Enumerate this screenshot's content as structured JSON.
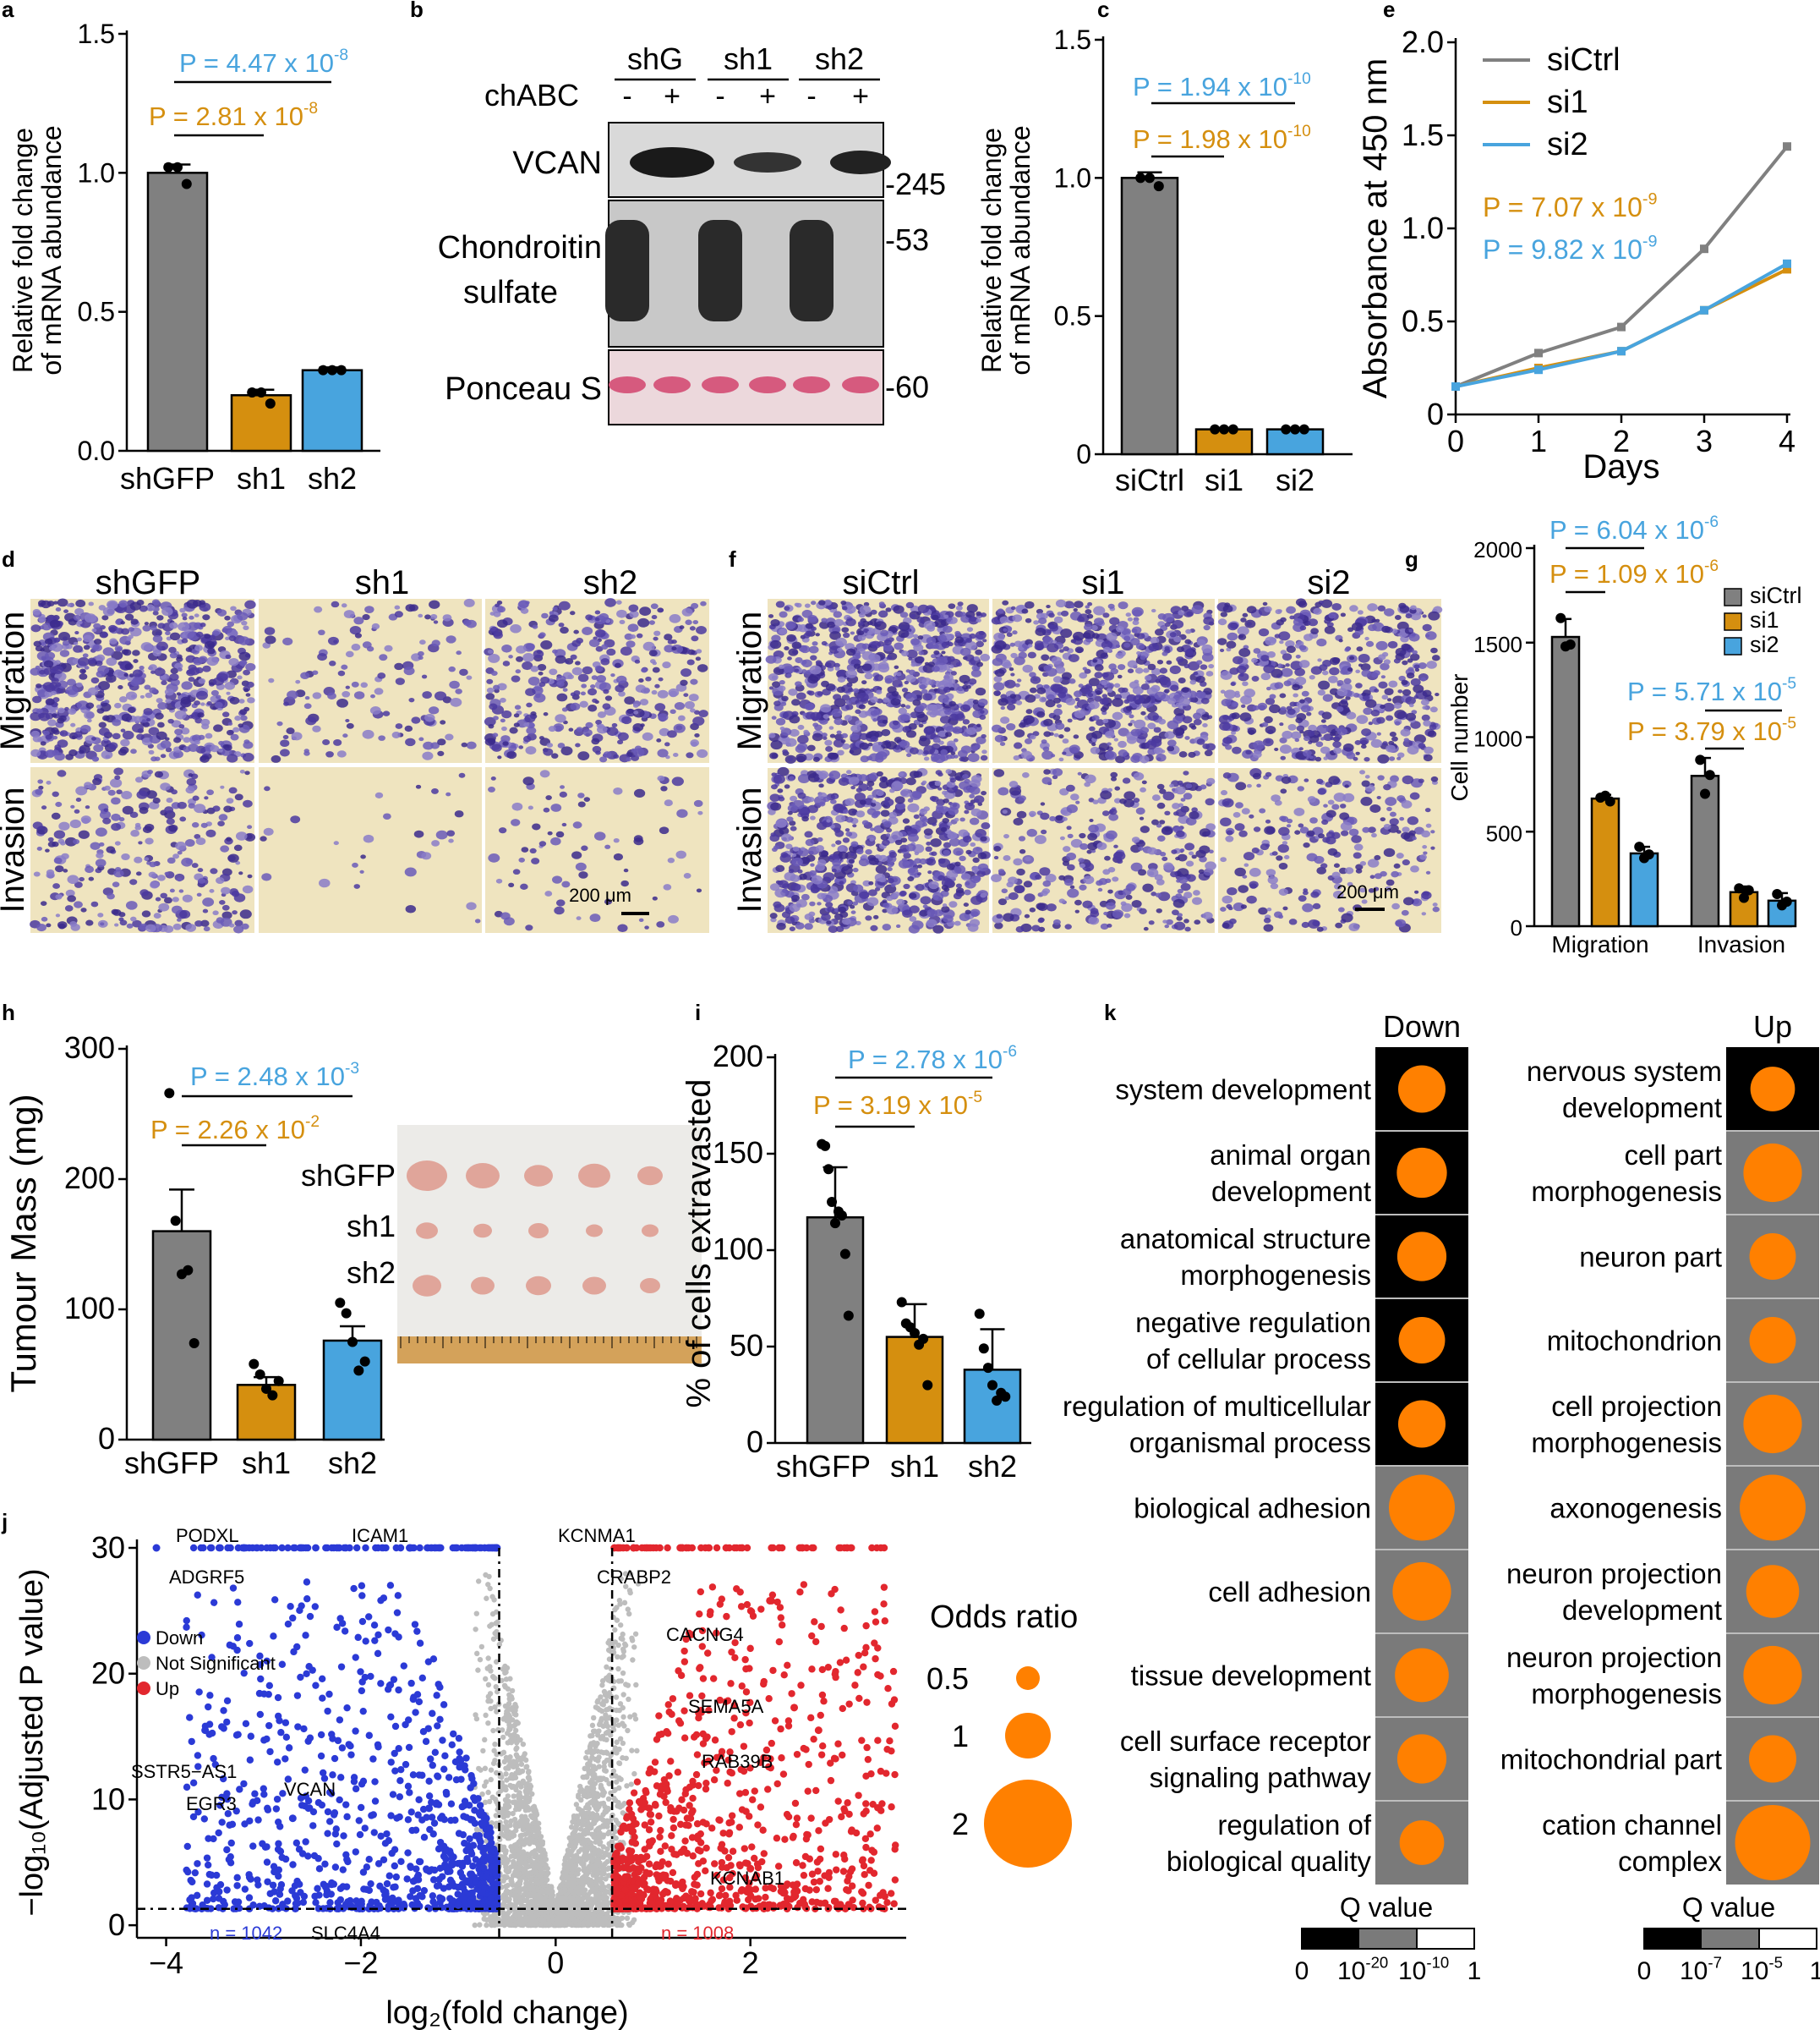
{
  "colors": {
    "grey": "#808080",
    "orange": "#d58f0f",
    "blue": "#48a4de",
    "down": "#2b3ad6",
    "up": "#e2272e",
    "ns": "#bdbdbd",
    "dot": "#ff8000",
    "black": "#000000",
    "mid": "#7a7a7a"
  },
  "panels": {
    "a": {
      "letter": "a",
      "ylabel1": "Relative fold change",
      "ylabel2": "of mRNA abundance",
      "yticks": [
        "0.0",
        "0.5",
        "1.0",
        "1.5"
      ],
      "p_blue": "P = 4.47 x 10",
      "p_blue_exp": "-8",
      "p_orange": "P = 2.81 x 10",
      "p_orange_exp": "-8"
    },
    "b": {
      "letter": "b",
      "groups": [
        "shG",
        "sh1",
        "sh2"
      ],
      "chabc": "chABC",
      "signs": [
        "-",
        "+",
        "-",
        "+",
        "-",
        "+"
      ],
      "rows": [
        "VCAN",
        "Chondroitin",
        "sulfate",
        "Ponceau S"
      ],
      "mw": [
        "-245",
        "-53",
        "-60"
      ]
    },
    "c": {
      "letter": "c",
      "ylabel1": "Relative fold change",
      "ylabel2": "of mRNA abundance",
      "yticks": [
        "0",
        "0.5",
        "1.0",
        "1.5"
      ],
      "p_blue": "P = 1.94 x 10",
      "p_blue_exp": "-10",
      "p_orange": "P = 1.98 x 10",
      "p_orange_exp": "-10"
    },
    "e": {
      "letter": "e",
      "ylabel": "Absorbance at 450 nm",
      "xlabel": "Days",
      "yticks": [
        "0",
        "0.5",
        "1.0",
        "1.5",
        "2.0"
      ],
      "xticks": [
        "0",
        "1",
        "2",
        "3",
        "4"
      ],
      "legend": [
        "siCtrl",
        "si1",
        "si2"
      ],
      "p_orange": "P = 7.07 x 10",
      "p_orange_exp": "-9",
      "p_blue": "P = 9.82 x 10",
      "p_blue_exp": "-9"
    },
    "d": {
      "letter": "d",
      "cols": [
        "shGFP",
        "sh1",
        "sh2"
      ],
      "rows": [
        "Migration",
        "Invasion"
      ],
      "scale": "200 μm"
    },
    "f": {
      "letter": "f",
      "cols": [
        "siCtrl",
        "si1",
        "si2"
      ],
      "rows": [
        "Migration",
        "Invasion"
      ],
      "scale": "200 μm"
    },
    "g": {
      "letter": "g",
      "ylabel": "Cell number",
      "yticks": [
        "0",
        "500",
        "1000",
        "1500",
        "2000"
      ],
      "groups": [
        "Migration",
        "Invasion"
      ],
      "legend": [
        "siCtrl",
        "si1",
        "si2"
      ],
      "p1_blue": "P = 6.04 x 10",
      "p1_blue_exp": "-6",
      "p1_orange": "P = 1.09 x 10",
      "p1_orange_exp": "-6",
      "p2_blue": "P = 5.71 x 10",
      "p2_blue_exp": "-5",
      "p2_orange": "P = 3.79 x 10",
      "p2_orange_exp": "-5"
    },
    "h": {
      "letter": "h",
      "ylabel": "Tumour Mass (mg)",
      "yticks": [
        "0",
        "100",
        "200",
        "300"
      ],
      "p_blue": "P = 2.48 x 10",
      "p_blue_exp": "-3",
      "p_orange": "P = 2.26 x 10",
      "p_orange_exp": "-2",
      "photo_labels": [
        "shGFP",
        "sh1",
        "sh2"
      ]
    },
    "i": {
      "letter": "i",
      "ylabel": "% of cells extravasted",
      "yticks": [
        "0",
        "50",
        "100",
        "150",
        "200"
      ],
      "p_blue": "P = 2.78 x 10",
      "p_blue_exp": "-6",
      "p_orange": "P = 3.19 x 10",
      "p_orange_exp": "-5"
    },
    "j": {
      "letter": "j",
      "ylabel": "−log₁₀(Adjusted P value)",
      "xlabel": "log₂(fold change)",
      "xticks": [
        "−4",
        "−2",
        "0",
        "2"
      ],
      "yticks": [
        "0",
        "10",
        "20",
        "30"
      ],
      "legend": [
        "Down",
        "Not Significant",
        "Up"
      ],
      "n_down": "n = 1042",
      "n_up": "n = 1008",
      "genes": [
        "PODXL",
        "ICAM1",
        "ADGRF5",
        "KCNMA1",
        "CRABP2",
        "CACNG4",
        "SEMA5A",
        "RAB39B",
        "SSTR5−AS1",
        "VCAN",
        "EGR3",
        "KCNAB1",
        "SLC4A4"
      ],
      "odds_title": "Odds ratio",
      "odds_labels": [
        "0.5",
        "1",
        "2"
      ]
    },
    "k": {
      "letter": "k",
      "down_title": "Down",
      "up_title": "Up",
      "down_terms": [
        [
          "system development"
        ],
        [
          "animal organ",
          "development"
        ],
        [
          "anatomical structure",
          "morphogenesis"
        ],
        [
          "negative regulation",
          "of cellular process"
        ],
        [
          "regulation of multicellular",
          "organismal process"
        ],
        [
          "biological adhesion"
        ],
        [
          "cell adhesion"
        ],
        [
          "tissue development"
        ],
        [
          "cell surface receptor",
          "signaling pathway"
        ],
        [
          "regulation of",
          "biological quality"
        ]
      ],
      "up_terms": [
        [
          "nervous system",
          "development"
        ],
        [
          "cell part",
          "morphogenesis"
        ],
        [
          "neuron part"
        ],
        [
          "mitochondrion"
        ],
        [
          "cell projection",
          "morphogenesis"
        ],
        [
          "axonogenesis"
        ],
        [
          "neuron projection",
          "development"
        ],
        [
          "neuron projection",
          "morphogenesis"
        ],
        [
          "mitochondrial part"
        ],
        [
          "cation channel",
          "complex"
        ]
      ],
      "qtitle": "Q value",
      "q_down_ticks": [
        "0",
        "10",
        "1"
      ],
      "q_down_exps": [
        "-20",
        "-10"
      ],
      "q_up_ticks": [
        "0",
        "10",
        "1"
      ],
      "q_up_exps": [
        "-7",
        "-5"
      ]
    }
  },
  "chart_data": [
    {
      "panel": "a",
      "type": "bar",
      "categories": [
        "shGFP",
        "sh1",
        "sh2"
      ],
      "values": [
        1.0,
        0.2,
        0.29
      ],
      "errors": [
        0.03,
        0.02,
        0.01
      ],
      "points": [
        [
          1.02,
          1.02,
          0.96
        ],
        [
          0.21,
          0.21,
          0.17
        ],
        [
          0.29,
          0.29,
          0.29
        ]
      ],
      "ylim": [
        0,
        1.5
      ],
      "colors": [
        "#808080",
        "#d58f0f",
        "#48a4de"
      ]
    },
    {
      "panel": "c",
      "type": "bar",
      "categories": [
        "siCtrl",
        "si1",
        "si2"
      ],
      "values": [
        1.0,
        0.09,
        0.09
      ],
      "errors": [
        0.02,
        0.005,
        0.005
      ],
      "points": [
        [
          1.0,
          1.0,
          0.97
        ],
        [
          0.09,
          0.09,
          0.09
        ],
        [
          0.09,
          0.09,
          0.09
        ]
      ],
      "ylim": [
        0,
        1.5
      ],
      "colors": [
        "#808080",
        "#d58f0f",
        "#48a4de"
      ]
    },
    {
      "panel": "e",
      "type": "line",
      "x": [
        0,
        1,
        2,
        3,
        4
      ],
      "series": [
        {
          "name": "siCtrl",
          "values": [
            0.15,
            0.33,
            0.47,
            0.89,
            1.44
          ]
        },
        {
          "name": "si1",
          "values": [
            0.15,
            0.25,
            0.34,
            0.56,
            0.78
          ]
        },
        {
          "name": "si2",
          "values": [
            0.15,
            0.24,
            0.34,
            0.56,
            0.81
          ]
        }
      ],
      "xlim": [
        0,
        4
      ],
      "ylim": [
        0,
        2.0
      ],
      "ylabel": "Absorbance at 450 nm",
      "xlabel": "Days"
    },
    {
      "panel": "g",
      "type": "bar",
      "categories": [
        "Migration",
        "Invasion"
      ],
      "series": [
        {
          "name": "siCtrl",
          "values": [
            1530,
            795
          ],
          "errors": [
            95,
            95
          ],
          "points": [
            [
              1630,
              1480,
              1490
            ],
            [
              880,
              700,
              800
            ]
          ]
        },
        {
          "name": "si1",
          "values": [
            675,
            180
          ],
          "errors": [
            20,
            30
          ],
          "points": [
            [
              680,
              690,
              660
            ],
            [
              200,
              150,
              190
            ]
          ]
        },
        {
          "name": "si2",
          "values": [
            385,
            135
          ],
          "errors": [
            35,
            40
          ],
          "points": [
            [
              420,
              360,
              380
            ],
            [
              170,
              110,
              130
            ]
          ]
        }
      ],
      "ylim": [
        0,
        2000
      ],
      "ylabel": "Cell number"
    },
    {
      "panel": "h",
      "type": "bar",
      "categories": [
        "shGFP",
        "sh1",
        "sh2"
      ],
      "values": [
        160,
        42,
        76
      ],
      "errors": [
        32,
        6,
        11
      ],
      "points": [
        [
          266,
          168,
          127,
          130,
          74
        ],
        [
          58,
          50,
          39,
          34,
          45
        ],
        [
          105,
          97,
          75,
          53,
          60
        ]
      ],
      "ylim": [
        0,
        300
      ],
      "ylabel": "Tumour Mass (mg)"
    },
    {
      "panel": "i",
      "type": "bar",
      "categories": [
        "shGFP",
        "sh1",
        "sh2"
      ],
      "values": [
        117,
        55,
        38
      ],
      "errors": [
        26,
        17,
        21
      ],
      "points": [
        [
          155,
          154,
          142,
          125,
          114,
          120,
          118,
          98,
          66
        ],
        [
          73,
          62,
          60,
          57,
          51,
          54,
          30
        ],
        [
          67,
          49,
          39,
          30,
          22,
          26,
          24
        ]
      ],
      "ylim": [
        0,
        200
      ],
      "ylabel": "% of cells extravasted"
    },
    {
      "panel": "j",
      "type": "scatter",
      "xlim": [
        -4.3,
        3.6
      ],
      "ylim": [
        0,
        30
      ],
      "xlabel": "log₂(fold change)",
      "ylabel": "−log₁₀(Adjusted P value)",
      "fc_threshold": 0.58,
      "p_threshold": 1.3,
      "n_down": 1042,
      "n_up": 1008,
      "labeled_genes": [
        {
          "gene": "ADGRF5",
          "x": -4.1,
          "y": 30
        },
        {
          "gene": "PODXL",
          "x": -3.2,
          "y": 30
        },
        {
          "gene": "ICAM1",
          "x": -1.5,
          "y": 30
        },
        {
          "gene": "KCNMA1",
          "x": 0.8,
          "y": 30
        },
        {
          "gene": "CRABP2",
          "x": 1.3,
          "y": 30
        },
        {
          "gene": "CACNG4",
          "x": 2.2,
          "y": 25.8
        },
        {
          "gene": "SEMA5A",
          "x": 2.45,
          "y": 17.3
        },
        {
          "gene": "RAB39B",
          "x": 2.7,
          "y": 15.5
        },
        {
          "gene": "SSTR5−AS1",
          "x": -3.6,
          "y": 15.5
        },
        {
          "gene": "VCAN",
          "x": -1.3,
          "y": 9.3
        },
        {
          "gene": "EGR3",
          "x": -2.7,
          "y": 8.5
        },
        {
          "gene": "KCNAB1",
          "x": 2.0,
          "y": 4.5
        },
        {
          "gene": "SLC4A4",
          "x": -1.0,
          "y": 1.6
        }
      ]
    },
    {
      "panel": "k",
      "type": "bubble",
      "down": {
        "terms": [
          "system development",
          "animal organ development",
          "anatomical structure morphogenesis",
          "negative regulation of cellular process",
          "regulation of multicellular organismal process",
          "biological adhesion",
          "cell adhesion",
          "tissue development",
          "cell surface receptor signaling pathway",
          "regulation of biological quality"
        ],
        "odds_ratio": [
          1.0,
          1.15,
          1.1,
          0.95,
          1.0,
          2.0,
          1.6,
          1.35,
          1.1,
          0.85
        ],
        "q_class": [
          "black",
          "black",
          "black",
          "black",
          "black",
          "grey",
          "grey",
          "grey",
          "grey",
          "grey"
        ]
      },
      "up": {
        "terms": [
          "nervous system development",
          "cell part morphogenesis",
          "neuron part",
          "mitochondrion",
          "cell projection morphogenesis",
          "axonogenesis",
          "neuron projection development",
          "neuron projection morphogenesis",
          "mitochondrial part",
          "cation channel complex"
        ],
        "odds_ratio": [
          0.85,
          1.6,
          0.95,
          0.95,
          1.6,
          2.0,
          1.3,
          1.6,
          1.0,
          2.5
        ],
        "q_class": [
          "black",
          "grey",
          "grey",
          "grey",
          "grey",
          "grey",
          "grey",
          "grey",
          "grey",
          "grey"
        ]
      },
      "odds_legend": [
        0.5,
        1,
        2
      ]
    }
  ]
}
